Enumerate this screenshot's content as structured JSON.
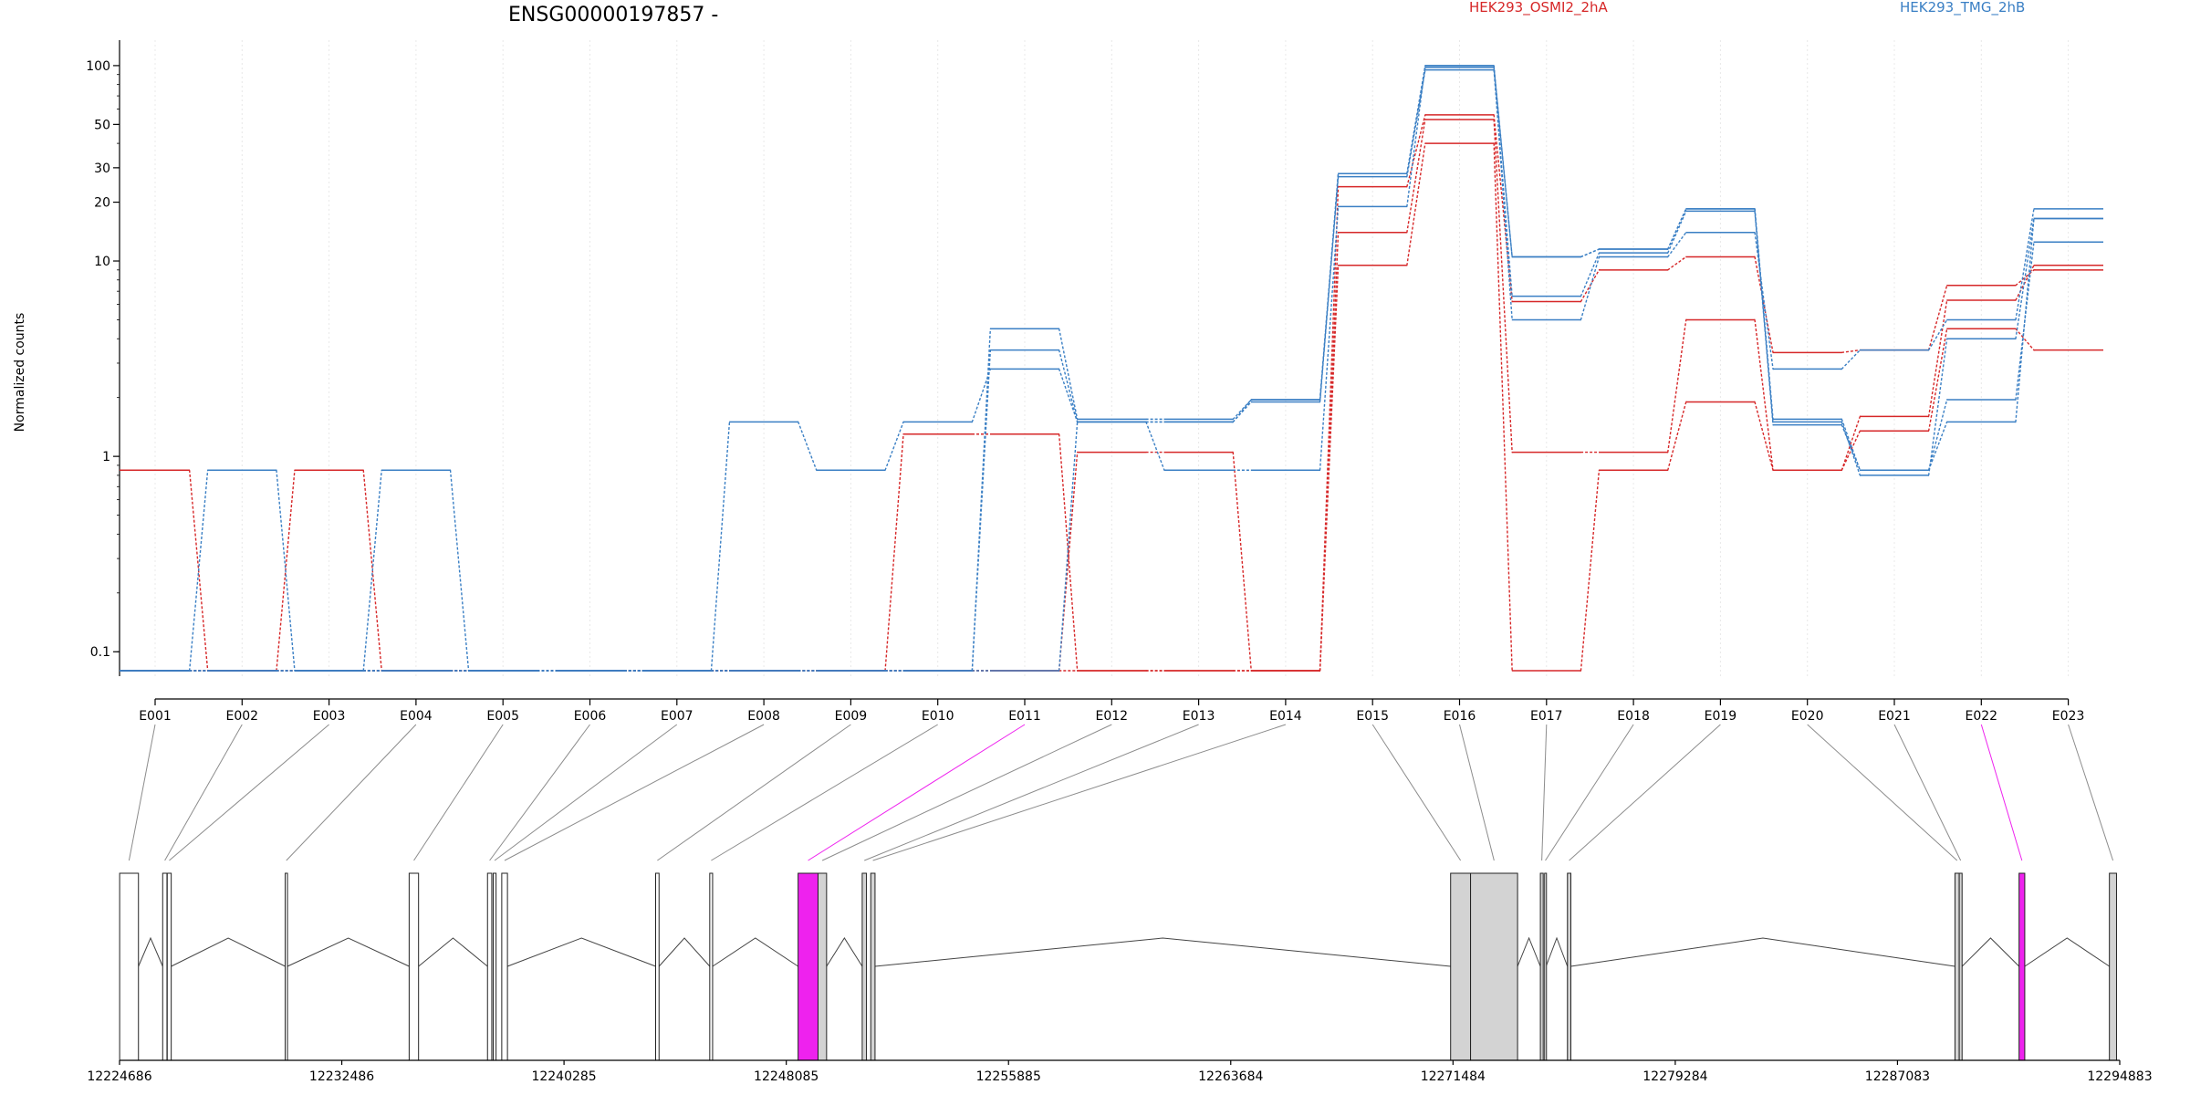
{
  "chart_data": {
    "type": "line",
    "title": "ENSG00000197857 -",
    "ylabel": "Normalized counts",
    "yscale": "log",
    "ylim": [
      0.075,
      135
    ],
    "yticks": [
      0.1,
      1,
      10,
      20,
      30,
      50,
      100
    ],
    "ytick_labels": [
      "0.1",
      "1",
      "10",
      "20",
      "30",
      "50",
      "100"
    ],
    "grid": "vertical dotted",
    "legend": [
      {
        "name": "HEK293_OSMI2_2hA",
        "color": "#d62728"
      },
      {
        "name": "HEK293_TMG_2hB",
        "color": "#3a7fc4"
      }
    ],
    "categories": [
      "E001",
      "E002",
      "E003",
      "E004",
      "E005",
      "E006",
      "E007",
      "E008",
      "E009",
      "E010",
      "E011",
      "E012",
      "E013",
      "E014",
      "E015",
      "E016",
      "E017",
      "E018",
      "E019",
      "E020",
      "E021",
      "E022",
      "E023"
    ],
    "series": [
      {
        "group": "HEK293_OSMI2_2hA",
        "color": "#d62728",
        "values": [
          0.85,
          0.08,
          0.85,
          0.08,
          0.08,
          0.08,
          0.08,
          0.08,
          0.08,
          0.08,
          0.08,
          0.08,
          0.08,
          0.08,
          9.5,
          40,
          0.08,
          0.85,
          1.9,
          0.85,
          1.35,
          4.5,
          3.5
        ]
      },
      {
        "group": "HEK293_OSMI2_2hA",
        "color": "#d62728",
        "values": [
          0.08,
          0.08,
          0.08,
          0.08,
          0.08,
          0.08,
          0.08,
          0.08,
          0.08,
          1.3,
          1.3,
          0.08,
          0.08,
          0.08,
          14,
          53,
          1.05,
          1.05,
          5,
          0.85,
          1.6,
          6.3,
          9.5
        ]
      },
      {
        "group": "HEK293_OSMI2_2hA",
        "color": "#d62728",
        "values": [
          0.08,
          0.08,
          0.08,
          0.08,
          0.08,
          0.08,
          0.08,
          0.08,
          0.08,
          0.08,
          0.08,
          1.05,
          1.05,
          0.08,
          24,
          56,
          6.2,
          9,
          10.5,
          3.4,
          3.5,
          7.5,
          9
        ]
      },
      {
        "group": "HEK293_TMG_2hB",
        "color": "#3a7fc4",
        "values": [
          0.08,
          0.85,
          0.08,
          0.85,
          0.08,
          0.08,
          0.08,
          0.08,
          0.08,
          0.08,
          0.08,
          1.5,
          1.5,
          1.95,
          28,
          100,
          10.5,
          11.5,
          18.5,
          1.5,
          0.8,
          4,
          16.5
        ]
      },
      {
        "group": "HEK293_TMG_2hB",
        "color": "#3a7fc4",
        "values": [
          0.08,
          0.08,
          0.08,
          0.08,
          0.08,
          0.08,
          0.08,
          1.5,
          0.85,
          1.5,
          2.8,
          1.5,
          1.5,
          1.9,
          27,
          95,
          6.6,
          11,
          18,
          1.45,
          0.85,
          1.95,
          12.5
        ]
      },
      {
        "group": "HEK293_TMG_2hB",
        "color": "#3a7fc4",
        "values": [
          0.08,
          0.08,
          0.08,
          0.08,
          0.08,
          0.08,
          0.08,
          0.08,
          0.08,
          0.08,
          3.5,
          1.5,
          0.85,
          0.85,
          19,
          100,
          5,
          10.5,
          14,
          2.8,
          3.5,
          5,
          18.5
        ]
      },
      {
        "group": "HEK293_TMG_2hB",
        "color": "#3a7fc4",
        "values": [
          0.08,
          0.08,
          0.08,
          0.08,
          0.08,
          0.08,
          0.08,
          0.08,
          0.08,
          0.08,
          4.5,
          1.55,
          1.55,
          1.95,
          28,
          98,
          10.5,
          11.5,
          18.5,
          1.55,
          0.85,
          1.5,
          16.5
        ]
      }
    ],
    "genome_axis": {
      "ticks": [
        12224686,
        12232486,
        12240285,
        12248085,
        12255885,
        12263684,
        12271484,
        12279284,
        12287083,
        12294883
      ],
      "tick_labels": [
        "12224686",
        "12232486",
        "12240285",
        "12248085",
        "12255885",
        "12263684",
        "12271484",
        "12279284",
        "12287083",
        "12294883"
      ]
    },
    "exon_highlight_color": "#ee22ee",
    "exon_default_color": "#d3d3d3",
    "exons": [
      {
        "id": "E001",
        "start": 12224690,
        "end": 12225350,
        "state": "empty"
      },
      {
        "id": "E002",
        "start": 12226200,
        "end": 12226350,
        "state": "empty"
      },
      {
        "id": "E003",
        "start": 12226360,
        "end": 12226500,
        "state": "empty"
      },
      {
        "id": "E004",
        "start": 12230500,
        "end": 12230580,
        "state": "empty"
      },
      {
        "id": "E005",
        "start": 12234850,
        "end": 12235180,
        "state": "empty"
      },
      {
        "id": "E006",
        "start": 12237600,
        "end": 12237750,
        "state": "empty"
      },
      {
        "id": "E007",
        "start": 12237800,
        "end": 12237900,
        "state": "empty"
      },
      {
        "id": "E008",
        "start": 12238100,
        "end": 12238300,
        "state": "empty"
      },
      {
        "id": "E009",
        "start": 12243500,
        "end": 12243620,
        "state": "empty"
      },
      {
        "id": "E010",
        "start": 12245400,
        "end": 12245500,
        "state": "empty"
      },
      {
        "id": "E011",
        "start": 12248500,
        "end": 12249200,
        "state": "highlight"
      },
      {
        "id": "E012",
        "start": 12249200,
        "end": 12249500,
        "state": "filled"
      },
      {
        "id": "E013",
        "start": 12250750,
        "end": 12250900,
        "state": "filled"
      },
      {
        "id": "E014",
        "start": 12251050,
        "end": 12251200,
        "state": "filled"
      },
      {
        "id": "E015",
        "start": 12271400,
        "end": 12272100,
        "state": "filled"
      },
      {
        "id": "E016",
        "start": 12272100,
        "end": 12273750,
        "state": "filled"
      },
      {
        "id": "E017",
        "start": 12274550,
        "end": 12274650,
        "state": "filled"
      },
      {
        "id": "E018",
        "start": 12274700,
        "end": 12274750,
        "state": "empty"
      },
      {
        "id": "E019",
        "start": 12275500,
        "end": 12275620,
        "state": "filled"
      },
      {
        "id": "E020",
        "start": 12289100,
        "end": 12289250,
        "state": "filled"
      },
      {
        "id": "E021",
        "start": 12289250,
        "end": 12289350,
        "state": "filled"
      },
      {
        "id": "E022",
        "start": 12291350,
        "end": 12291550,
        "state": "highlight"
      },
      {
        "id": "E023",
        "start": 12294520,
        "end": 12294770,
        "state": "filled"
      }
    ],
    "introns": [
      [
        12225350,
        12226200
      ],
      [
        12226500,
        12230500
      ],
      [
        12230580,
        12234850
      ],
      [
        12235180,
        12237600
      ],
      [
        12238300,
        12243500
      ],
      [
        12243620,
        12245400
      ],
      [
        12245500,
        12248500
      ],
      [
        12249500,
        12250750
      ],
      [
        12251200,
        12271400
      ],
      [
        12273750,
        12274550
      ],
      [
        12274750,
        12275500
      ],
      [
        12275620,
        12289100
      ],
      [
        12289350,
        12291350
      ],
      [
        12291550,
        12294520
      ]
    ]
  }
}
